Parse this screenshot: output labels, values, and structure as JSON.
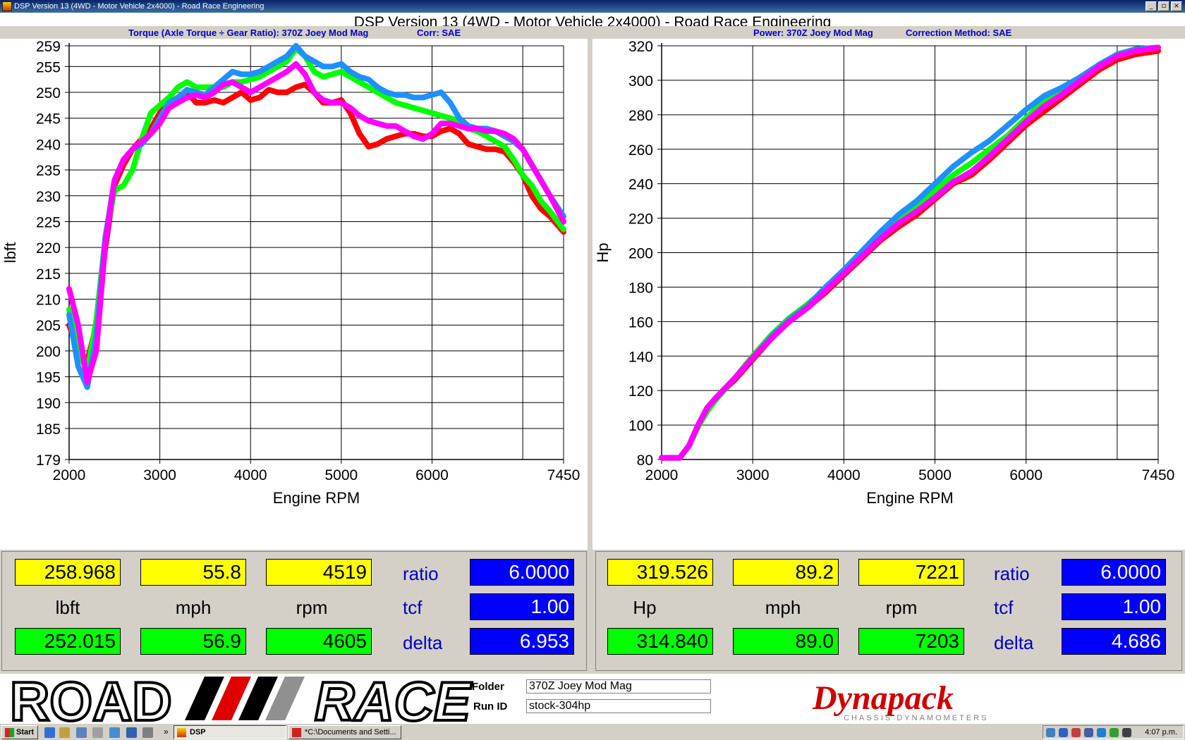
{
  "window": {
    "title": "DSP Version 13 (4WD - Motor Vehicle 2x4000) - Road Race Engineering",
    "graph_title": "DSP Version 13 (4WD - Motor Vehicle 2x4000) - Road Race Engineering",
    "left_subtitle_1": "Torque (Axle Torque ÷ Gear Ratio): 370Z Joey Mod Mag",
    "left_subtitle_2": "Corr: SAE",
    "right_subtitle_1": "Power: 370Z Joey Mod Mag",
    "right_subtitle_2": "Correction Method: SAE",
    "min_glyph": "_",
    "max_glyph": "▫",
    "close_glyph": "×"
  },
  "colors": {
    "red": "#ff0000",
    "green": "#00ff00",
    "blue": "#1e90ff",
    "magenta": "#ff00ff",
    "grid": "#000000",
    "panel_blue": "#0000ff",
    "label_blue": "#0000c0"
  },
  "chart_data": [
    {
      "type": "line",
      "ylabel": "lbft",
      "xlabel": "Engine RPM",
      "xlim": [
        2000,
        7450
      ],
      "ylim": [
        179,
        259
      ],
      "xticks": [
        2000,
        3000,
        4000,
        5000,
        6000,
        7450
      ],
      "yticks": [
        179,
        185,
        190,
        195,
        200,
        205,
        210,
        215,
        220,
        225,
        230,
        235,
        240,
        245,
        250,
        255,
        259
      ],
      "grid": true,
      "series": [
        {
          "color": "#ff0000",
          "x": [
            2000,
            2100,
            2200,
            2300,
            2400,
            2500,
            2600,
            2700,
            2800,
            2900,
            3000,
            3100,
            3200,
            3300,
            3400,
            3500,
            3600,
            3700,
            3800,
            3900,
            4000,
            4100,
            4200,
            4300,
            4400,
            4500,
            4600,
            4700,
            4800,
            4900,
            5000,
            5100,
            5200,
            5300,
            5400,
            5500,
            5600,
            5700,
            5800,
            5900,
            6000,
            6100,
            6200,
            6300,
            6400,
            6500,
            6600,
            6700,
            6800,
            6900,
            7000,
            7100,
            7200,
            7300,
            7450
          ],
          "y": [
            205,
            200,
            198,
            205,
            220,
            232,
            236,
            239,
            241,
            243,
            246,
            248,
            249,
            250,
            248,
            248,
            248.5,
            248,
            249,
            250,
            248.5,
            249,
            250.5,
            250,
            250,
            251,
            251.5,
            250,
            248,
            248,
            248.5,
            246,
            242,
            239.5,
            240,
            241,
            241.5,
            242,
            242,
            241.5,
            241.5,
            242.5,
            243,
            242,
            240,
            239.5,
            239,
            239,
            238.5,
            236.5,
            234,
            230,
            227.5,
            226,
            223
          ]
        },
        {
          "color": "#00ff00",
          "x": [
            2000,
            2100,
            2200,
            2300,
            2400,
            2500,
            2600,
            2700,
            2800,
            2900,
            3000,
            3100,
            3200,
            3300,
            3400,
            3500,
            3600,
            3700,
            3800,
            3900,
            4000,
            4100,
            4200,
            4300,
            4400,
            4500,
            4600,
            4700,
            4800,
            4900,
            5000,
            5100,
            5200,
            5300,
            5400,
            5500,
            5600,
            5700,
            5800,
            5900,
            6000,
            6100,
            6200,
            6300,
            6400,
            6500,
            6600,
            6700,
            6800,
            6900,
            7000,
            7100,
            7200,
            7300,
            7450
          ],
          "y": [
            208,
            200,
            196,
            206,
            222,
            231,
            232,
            235,
            241,
            246,
            247.5,
            249,
            251,
            252,
            251,
            251,
            251,
            251,
            252,
            252,
            252.5,
            253,
            254,
            255,
            256,
            258.5,
            257,
            254,
            253,
            253.5,
            254,
            253,
            252,
            251,
            250,
            249,
            248,
            247.5,
            247,
            246.5,
            246,
            245.5,
            245,
            244.5,
            243,
            242.5,
            241.5,
            240.5,
            239.5,
            237,
            234,
            232,
            229,
            227,
            223.5
          ]
        },
        {
          "color": "#1e90ff",
          "x": [
            2000,
            2100,
            2200,
            2300,
            2400,
            2500,
            2600,
            2700,
            2800,
            2900,
            3000,
            3100,
            3200,
            3300,
            3400,
            3500,
            3600,
            3700,
            3800,
            3900,
            4000,
            4100,
            4200,
            4300,
            4400,
            4500,
            4600,
            4700,
            4800,
            4900,
            5000,
            5100,
            5200,
            5300,
            5400,
            5500,
            5600,
            5700,
            5800,
            5900,
            6000,
            6100,
            6200,
            6300,
            6400,
            6500,
            6600,
            6700,
            6800,
            6900,
            7000,
            7100,
            7200,
            7300,
            7450
          ],
          "y": [
            207,
            197,
            193,
            203,
            222,
            233,
            237,
            239,
            240,
            242,
            245,
            248,
            249,
            250.5,
            250,
            249.5,
            251,
            252.5,
            254,
            253.5,
            253.5,
            254,
            255,
            256,
            257,
            259,
            257,
            256,
            255,
            255,
            255.5,
            254,
            253,
            252.5,
            251,
            250,
            249.5,
            249.5,
            249,
            249,
            249.5,
            250,
            248,
            245,
            243.5,
            243,
            243,
            242.5,
            241.5,
            240.5,
            239,
            236,
            233,
            230,
            226
          ]
        },
        {
          "color": "#ff00ff",
          "x": [
            2000,
            2100,
            2200,
            2300,
            2400,
            2500,
            2600,
            2700,
            2800,
            2900,
            3000,
            3100,
            3200,
            3300,
            3400,
            3500,
            3600,
            3700,
            3800,
            3900,
            4000,
            4100,
            4200,
            4300,
            4400,
            4500,
            4600,
            4700,
            4800,
            4900,
            5000,
            5100,
            5200,
            5300,
            5400,
            5500,
            5600,
            5700,
            5800,
            5900,
            6000,
            6100,
            6200,
            6300,
            6400,
            6500,
            6600,
            6700,
            6800,
            6900,
            7000,
            7100,
            7200,
            7300,
            7450
          ],
          "y": [
            212,
            205,
            194,
            200,
            221,
            233,
            237,
            239,
            240.5,
            242,
            244,
            247,
            248,
            249,
            249.5,
            249,
            250,
            251.5,
            252,
            251,
            250,
            251,
            252,
            253,
            254,
            255.5,
            253.5,
            250,
            248.5,
            248,
            248,
            247,
            245.5,
            244.5,
            244,
            243.5,
            243.5,
            242.5,
            241.5,
            241,
            242,
            244,
            244,
            243.5,
            243,
            243,
            242.5,
            242.5,
            242,
            241,
            239,
            236,
            233,
            230,
            225
          ]
        }
      ]
    },
    {
      "type": "line",
      "ylabel": "Hp",
      "xlabel": "Engine RPM",
      "xlim": [
        2000,
        7450
      ],
      "ylim": [
        80,
        320
      ],
      "xticks": [
        2000,
        3000,
        4000,
        5000,
        6000,
        7450
      ],
      "yticks": [
        80,
        100,
        120,
        140,
        160,
        180,
        200,
        220,
        240,
        260,
        280,
        300,
        320
      ],
      "grid": true,
      "series": [
        {
          "color": "#ff0000",
          "x": [
            2000,
            2200,
            2300,
            2400,
            2500,
            2600,
            2800,
            3000,
            3200,
            3400,
            3600,
            3800,
            4000,
            4200,
            4400,
            4600,
            4800,
            5000,
            5200,
            5400,
            5600,
            5800,
            6000,
            6200,
            6400,
            6600,
            6800,
            7000,
            7200,
            7450
          ],
          "y": [
            81,
            81,
            88,
            100,
            110,
            116,
            126,
            138,
            150,
            160,
            168,
            177,
            187,
            197,
            207,
            215,
            222,
            231,
            240,
            245,
            254,
            264,
            274,
            282,
            290,
            298,
            306,
            312,
            315,
            317
          ]
        },
        {
          "color": "#00ff00",
          "x": [
            2000,
            2200,
            2300,
            2400,
            2500,
            2600,
            2800,
            3000,
            3200,
            3400,
            3600,
            3800,
            4000,
            4200,
            4400,
            4600,
            4800,
            5000,
            5200,
            5400,
            5600,
            5800,
            6000,
            6200,
            6400,
            6600,
            6800,
            7000,
            7200,
            7450
          ],
          "y": [
            81,
            81,
            88,
            99,
            108,
            115,
            127,
            140,
            152,
            162,
            170,
            179,
            189,
            200,
            210,
            218,
            226,
            236,
            245,
            252,
            260,
            268,
            278,
            288,
            295,
            302,
            309,
            315,
            318,
            319
          ]
        },
        {
          "color": "#1e90ff",
          "x": [
            2000,
            2200,
            2300,
            2400,
            2500,
            2600,
            2800,
            3000,
            3200,
            3400,
            3600,
            3800,
            4000,
            4200,
            4400,
            4600,
            4800,
            5000,
            5200,
            5400,
            5600,
            5800,
            6000,
            6200,
            6400,
            6600,
            6800,
            7000,
            7200,
            7450
          ],
          "y": [
            81,
            81,
            88,
            100,
            110,
            116,
            127,
            139,
            151,
            161,
            169,
            180,
            190,
            201,
            212,
            222,
            230,
            240,
            250,
            258,
            265,
            274,
            283,
            291,
            296,
            302,
            309,
            315,
            318,
            319
          ]
        },
        {
          "color": "#ff00ff",
          "x": [
            2000,
            2200,
            2300,
            2400,
            2500,
            2600,
            2800,
            3000,
            3200,
            3400,
            3600,
            3800,
            4000,
            4200,
            4400,
            4600,
            4800,
            5000,
            5200,
            5400,
            5600,
            5800,
            6000,
            6200,
            6400,
            6600,
            6800,
            7000,
            7200,
            7450
          ],
          "y": [
            81,
            81,
            88,
            100,
            110,
            116,
            127,
            139,
            150,
            160,
            168,
            178,
            188,
            198,
            208,
            217,
            224,
            232,
            241,
            247,
            256,
            266,
            276,
            285,
            292,
            300,
            308,
            314,
            317,
            319
          ]
        }
      ]
    }
  ],
  "left_panel": {
    "top_values": [
      "258.968",
      "55.8",
      "4519"
    ],
    "units": [
      "lbft",
      "mph",
      "rpm"
    ],
    "bottom_values": [
      "252.015",
      "56.9",
      "4605"
    ],
    "labels": [
      "ratio",
      "tcf",
      "delta"
    ],
    "blue_values": [
      "6.0000",
      "1.00",
      "6.953"
    ]
  },
  "right_panel": {
    "top_values": [
      "319.526",
      "89.2",
      "7221"
    ],
    "units": [
      "Hp",
      "mph",
      "rpm"
    ],
    "bottom_values": [
      "314.840",
      "89.0",
      "7203"
    ],
    "labels": [
      "ratio",
      "tcf",
      "delta"
    ],
    "blue_values": [
      "6.0000",
      "1.00",
      "4.686"
    ]
  },
  "footer": {
    "road_text": "ROAD",
    "race_text": "RACE",
    "folder_label": "Folder",
    "folder_value": "370Z Joey Mod Mag",
    "runid_label": "Run ID",
    "runid_value": "stock-304hp",
    "brand_text": "Dynapack",
    "brand_sub": "CHASSIS DYNAMOMETERS"
  },
  "taskbar": {
    "start_label": "Start",
    "chevron": "»",
    "task_dsp": "DSP",
    "task_docs": "*C:\\Documents and Setti...",
    "clock": "4:07 p.m."
  }
}
